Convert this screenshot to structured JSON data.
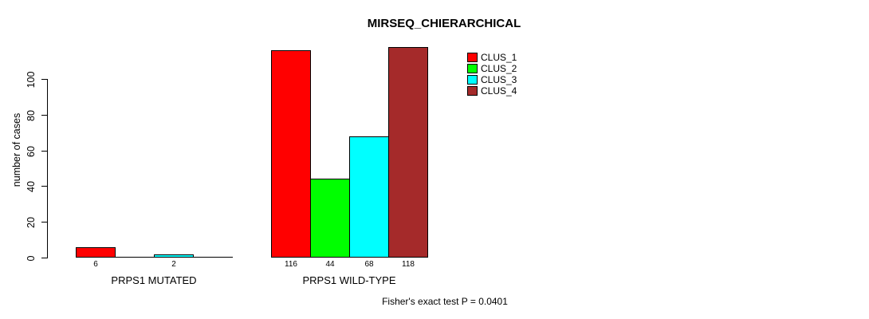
{
  "chart_data": {
    "type": "bar",
    "title": "MIRSEQ_CHIERARCHICAL",
    "ylabel": "number of cases",
    "xlabel": "",
    "categories": [
      "PRPS1 MUTATED",
      "PRPS1 WILD-TYPE"
    ],
    "series": [
      {
        "name": "CLUS_1",
        "color": "#FF0000",
        "values": [
          6,
          116
        ]
      },
      {
        "name": "CLUS_2",
        "color": "#00FF00",
        "values": [
          0,
          44
        ]
      },
      {
        "name": "CLUS_3",
        "color": "#00FFFF",
        "values": [
          2,
          68
        ]
      },
      {
        "name": "CLUS_4",
        "color": "#A52A2A",
        "values": [
          0,
          118
        ]
      }
    ],
    "yticks": [
      0,
      20,
      40,
      60,
      80,
      100
    ],
    "ylim": [
      0,
      118
    ],
    "bar_value_labels": [
      [
        "6",
        "",
        "2",
        ""
      ],
      [
        "116",
        "44",
        "68",
        "118"
      ]
    ],
    "grid": false,
    "legend_position": "top-right",
    "legend_entries": [
      "CLUS_1",
      "CLUS_2",
      "CLUS_3",
      "CLUS_4"
    ],
    "annotation": "Fisher's exact test P = 0.0401",
    "background_color": "#FFFFFF",
    "axis_color": "#000000"
  }
}
